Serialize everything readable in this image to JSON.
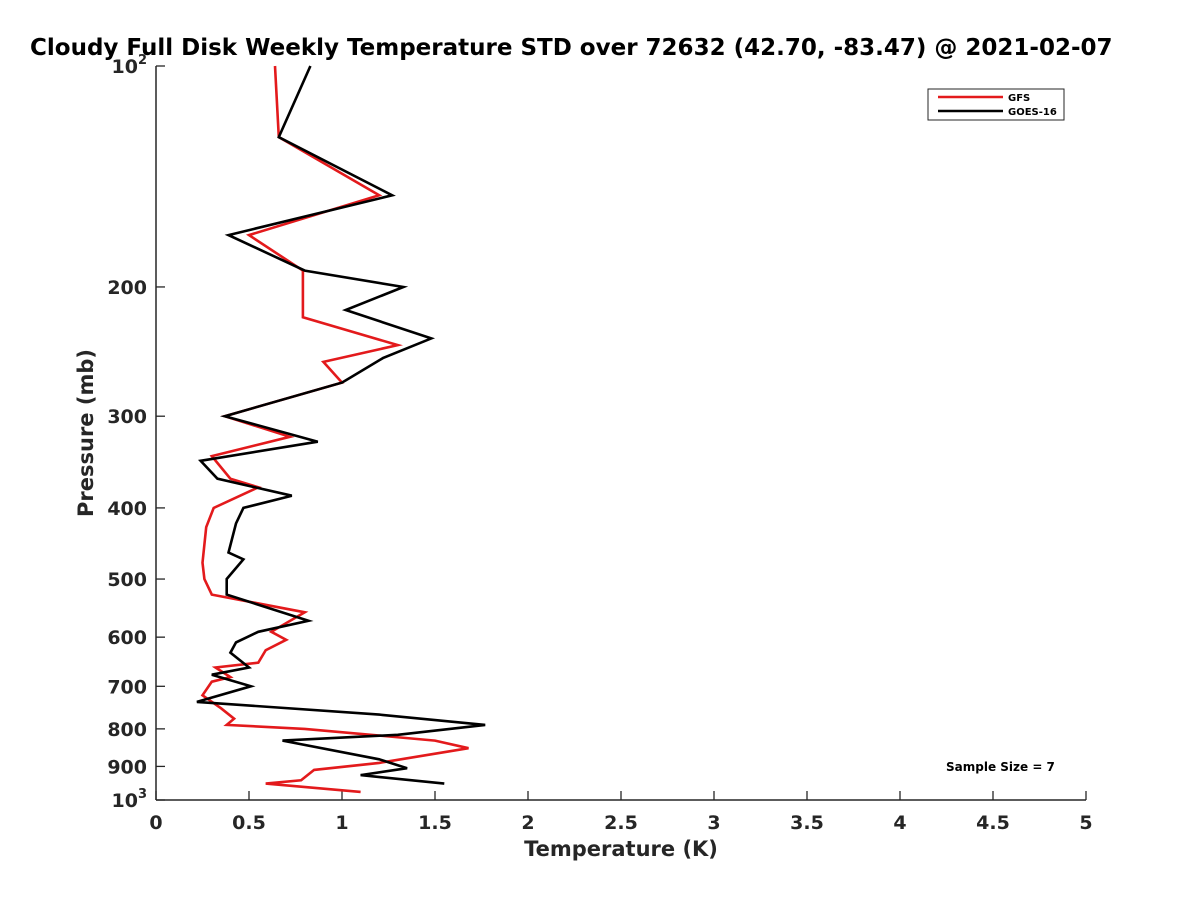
{
  "chart_data": {
    "type": "line",
    "title": "Cloudy Full Disk Weekly Temperature STD over 72632 (42.70, -83.47) @ 2021-02-07",
    "xlabel": "Temperature (K)",
    "ylabel": "Pressure (mb)",
    "xlim": [
      0,
      5
    ],
    "ylim": [
      100,
      1000
    ],
    "yscale": "log",
    "y_reversed": true,
    "grid": false,
    "legend_position": "top-right",
    "x_ticks": [
      {
        "value": 0,
        "label": "0"
      },
      {
        "value": 0.5,
        "label": "0.5"
      },
      {
        "value": 1,
        "label": "1"
      },
      {
        "value": 1.5,
        "label": "1.5"
      },
      {
        "value": 2,
        "label": "2"
      },
      {
        "value": 2.5,
        "label": "2.5"
      },
      {
        "value": 3,
        "label": "3"
      },
      {
        "value": 3.5,
        "label": "3.5"
      },
      {
        "value": 4,
        "label": "4"
      },
      {
        "value": 4.5,
        "label": "4.5"
      },
      {
        "value": 5,
        "label": "5"
      }
    ],
    "y_ticks": [
      {
        "value": 100,
        "base": "10",
        "exp": "2"
      },
      {
        "value": 200,
        "base": "200",
        "exp": ""
      },
      {
        "value": 300,
        "base": "300",
        "exp": ""
      },
      {
        "value": 400,
        "base": "400",
        "exp": ""
      },
      {
        "value": 500,
        "base": "500",
        "exp": ""
      },
      {
        "value": 600,
        "base": "600",
        "exp": ""
      },
      {
        "value": 700,
        "base": "700",
        "exp": ""
      },
      {
        "value": 800,
        "base": "800",
        "exp": ""
      },
      {
        "value": 900,
        "base": "900",
        "exp": ""
      },
      {
        "value": 1000,
        "base": "10",
        "exp": "3"
      }
    ],
    "series": [
      {
        "name": "GFS",
        "color": "#e31a1c",
        "points": [
          [
            0.64,
            100
          ],
          [
            0.66,
            125
          ],
          [
            1.2,
            150
          ],
          [
            0.5,
            170
          ],
          [
            0.79,
            190
          ],
          [
            0.79,
            220
          ],
          [
            1.3,
            240
          ],
          [
            0.9,
            253
          ],
          [
            1.0,
            270
          ],
          [
            0.37,
            300
          ],
          [
            0.72,
            320
          ],
          [
            0.3,
            340
          ],
          [
            0.4,
            365
          ],
          [
            0.55,
            375
          ],
          [
            0.31,
            400
          ],
          [
            0.27,
            425
          ],
          [
            0.25,
            475
          ],
          [
            0.26,
            500
          ],
          [
            0.3,
            525
          ],
          [
            0.8,
            555
          ],
          [
            0.62,
            590
          ],
          [
            0.7,
            605
          ],
          [
            0.59,
            625
          ],
          [
            0.55,
            650
          ],
          [
            0.32,
            660
          ],
          [
            0.4,
            680
          ],
          [
            0.3,
            690
          ],
          [
            0.25,
            720
          ],
          [
            0.35,
            750
          ],
          [
            0.42,
            775
          ],
          [
            0.38,
            790
          ],
          [
            0.8,
            800
          ],
          [
            1.5,
            830
          ],
          [
            1.68,
            850
          ],
          [
            1.2,
            890
          ],
          [
            0.85,
            910
          ],
          [
            0.78,
            940
          ],
          [
            0.59,
            950
          ],
          [
            1.1,
            975
          ]
        ]
      },
      {
        "name": "GOES-16",
        "color": "#000000",
        "points": [
          [
            0.83,
            100
          ],
          [
            0.66,
            125
          ],
          [
            1.27,
            150
          ],
          [
            0.39,
            170
          ],
          [
            0.8,
            190
          ],
          [
            1.33,
            200
          ],
          [
            1.02,
            215
          ],
          [
            1.48,
            235
          ],
          [
            1.22,
            250
          ],
          [
            1.0,
            270
          ],
          [
            0.37,
            300
          ],
          [
            0.87,
            325
          ],
          [
            0.24,
            345
          ],
          [
            0.33,
            365
          ],
          [
            0.73,
            385
          ],
          [
            0.47,
            400
          ],
          [
            0.43,
            420
          ],
          [
            0.39,
            460
          ],
          [
            0.47,
            470
          ],
          [
            0.38,
            500
          ],
          [
            0.38,
            525
          ],
          [
            0.82,
            570
          ],
          [
            0.55,
            590
          ],
          [
            0.43,
            610
          ],
          [
            0.4,
            630
          ],
          [
            0.5,
            660
          ],
          [
            0.3,
            675
          ],
          [
            0.51,
            700
          ],
          [
            0.22,
            735
          ],
          [
            1.2,
            765
          ],
          [
            1.77,
            790
          ],
          [
            1.3,
            815
          ],
          [
            0.68,
            830
          ],
          [
            1.2,
            880
          ],
          [
            1.35,
            905
          ],
          [
            1.1,
            925
          ],
          [
            1.55,
            950
          ]
        ]
      }
    ],
    "annotations": [
      {
        "text": "Sample Size = 7"
      }
    ]
  }
}
